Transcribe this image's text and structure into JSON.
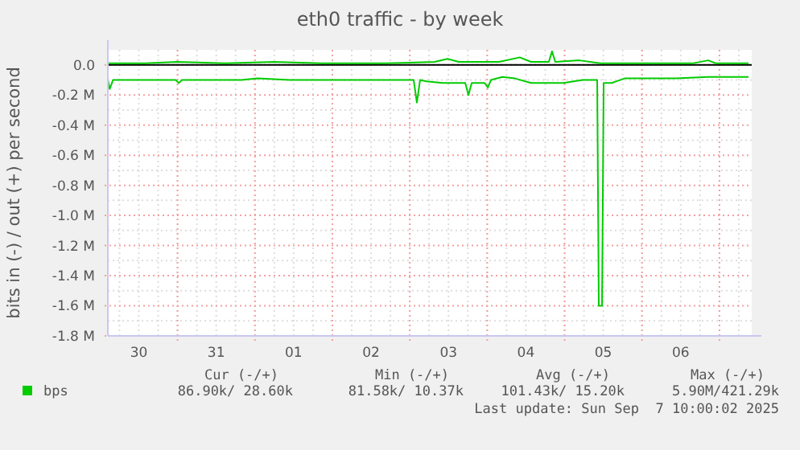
{
  "chart_data": {
    "type": "line",
    "title": "eth0 traffic - by week",
    "ylabel": "bits in (-) / out (+) per second",
    "xlim": [
      "2025-08-30T02:24",
      "2025-09-07T10:00"
    ],
    "xticks": [
      {
        "value": "2025-08-30T12:00",
        "label": "30"
      },
      {
        "value": "2025-08-31T00:00",
        "label": null
      },
      {
        "value": "2025-08-31T12:00",
        "label": "31"
      },
      {
        "value": "2025-09-01T00:00",
        "label": null
      },
      {
        "value": "2025-09-01T12:00",
        "label": "01"
      },
      {
        "value": "2025-09-02T00:00",
        "label": null
      },
      {
        "value": "2025-09-02T12:00",
        "label": "02"
      },
      {
        "value": "2025-09-03T00:00",
        "label": null
      },
      {
        "value": "2025-09-03T12:00",
        "label": "03"
      },
      {
        "value": "2025-09-04T00:00",
        "label": null
      },
      {
        "value": "2025-09-04T12:00",
        "label": "04"
      },
      {
        "value": "2025-09-05T00:00",
        "label": null
      },
      {
        "value": "2025-09-05T12:00",
        "label": "05"
      },
      {
        "value": "2025-09-06T00:00",
        "label": null
      },
      {
        "value": "2025-09-06T12:00",
        "label": "06"
      },
      {
        "value": "2025-09-07T00:00",
        "label": null
      }
    ],
    "ylim": [
      -1.8,
      0.1
    ],
    "yticks": [
      {
        "value": 0,
        "label": "0.0"
      },
      {
        "value": -0.2,
        "label": "-0.2 M"
      },
      {
        "value": -0.4,
        "label": "-0.4 M"
      },
      {
        "value": -0.6,
        "label": "-0.6 M"
      },
      {
        "value": -0.8,
        "label": "-0.8 M"
      },
      {
        "value": -1.0,
        "label": "-1.0 M"
      },
      {
        "value": -1.2,
        "label": "-1.2 M"
      },
      {
        "value": -1.4,
        "label": "-1.4 M"
      },
      {
        "value": -1.6,
        "label": "-1.6 M"
      },
      {
        "value": -1.8,
        "label": "-1.8 M"
      }
    ],
    "grid": true,
    "legend": "bottom left",
    "line_style": "solid",
    "series": [
      {
        "name": "bps",
        "color": "#00cc00",
        "x": [
          "2025-08-30T02:24",
          "2025-08-30T03:00",
          "2025-08-30T04:00",
          "2025-08-30T06:24",
          "2025-08-30T18:54",
          "2025-08-30T23:24",
          "2025-08-31T00:24",
          "2025-08-31T01:24",
          "2025-08-31T09:48",
          "2025-08-31T19:48",
          "2025-09-01T00:48",
          "2025-09-01T10:48",
          "2025-09-01T20:48",
          "2025-09-02T07:42",
          "2025-09-02T16:42",
          "2025-09-03T01:12",
          "2025-09-03T02:12",
          "2025-09-03T03:12",
          "2025-09-03T05:12",
          "2025-09-03T10:12",
          "2025-09-03T17:12",
          "2025-09-03T18:12",
          "2025-09-03T19:12",
          "2025-09-03T23:12",
          "2025-09-04T00:12",
          "2025-09-04T01:12",
          "2025-09-04T04:42",
          "2025-09-04T08:36",
          "2025-09-04T13:36",
          "2025-09-04T23:36",
          "2025-09-05T05:36",
          "2025-09-05T10:06",
          "2025-09-05T10:36",
          "2025-09-05T11:36",
          "2025-09-05T12:06",
          "2025-09-05T14:36",
          "2025-09-05T18:36",
          "2025-09-06T00:36",
          "2025-09-06T10:30",
          "2025-09-06T20:30",
          "2025-09-07T04:00",
          "2025-09-07T09:00"
        ],
        "values": [
          -0.1,
          -0.16,
          -0.1,
          -0.1,
          -0.1,
          -0.1,
          -0.12,
          -0.1,
          -0.1,
          -0.1,
          -0.09,
          -0.1,
          -0.1,
          -0.1,
          -0.1,
          -0.1,
          -0.25,
          -0.1,
          -0.11,
          -0.12,
          -0.12,
          -0.2,
          -0.12,
          -0.12,
          -0.15,
          -0.1,
          -0.08,
          -0.09,
          -0.12,
          -0.12,
          -0.1,
          -0.1,
          -1.6,
          -1.6,
          -0.12,
          -0.12,
          -0.09,
          -0.09,
          -0.09,
          -0.08,
          -0.08,
          -0.08
        ]
      },
      {
        "color": "#00cc00",
        "x": [
          "2025-08-30T02:24",
          "2025-08-30T13:54",
          "2025-08-30T23:54",
          "2025-08-31T14:48",
          "2025-09-01T05:48",
          "2025-09-01T20:48",
          "2025-09-02T16:42",
          "2025-09-03T07:42",
          "2025-09-03T11:42",
          "2025-09-03T15:12",
          "2025-09-04T03:42",
          "2025-09-04T10:06",
          "2025-09-04T13:36",
          "2025-09-04T19:06",
          "2025-09-04T20:06",
          "2025-09-04T21:06",
          "2025-09-05T04:36",
          "2025-09-05T11:06",
          "2025-09-06T00:36",
          "2025-09-06T15:36",
          "2025-09-06T20:30",
          "2025-09-06T23:00",
          "2025-09-07T09:00"
        ],
        "values": [
          0.01,
          0.01,
          0.02,
          0.01,
          0.02,
          0.01,
          0.01,
          0.02,
          0.04,
          0.02,
          0.02,
          0.05,
          0.02,
          0.02,
          0.09,
          0.02,
          0.03,
          0.01,
          0.01,
          0.01,
          0.03,
          0.01,
          0.01
        ]
      }
    ],
    "ref_lines": [
      {
        "axis": "y",
        "value": 0,
        "color": "#000000"
      }
    ],
    "annotations": [
      "Cur (-/+)",
      "Min (-/+)",
      "Avg (-/+)",
      "Max (-/+)",
      "86.90k/ 28.60k",
      "81.58k/ 10.37k",
      "101.43k/ 15.20k",
      "5.90M/421.29k",
      "Last update: Sun Sep  7 10:00:02 2025"
    ]
  }
}
